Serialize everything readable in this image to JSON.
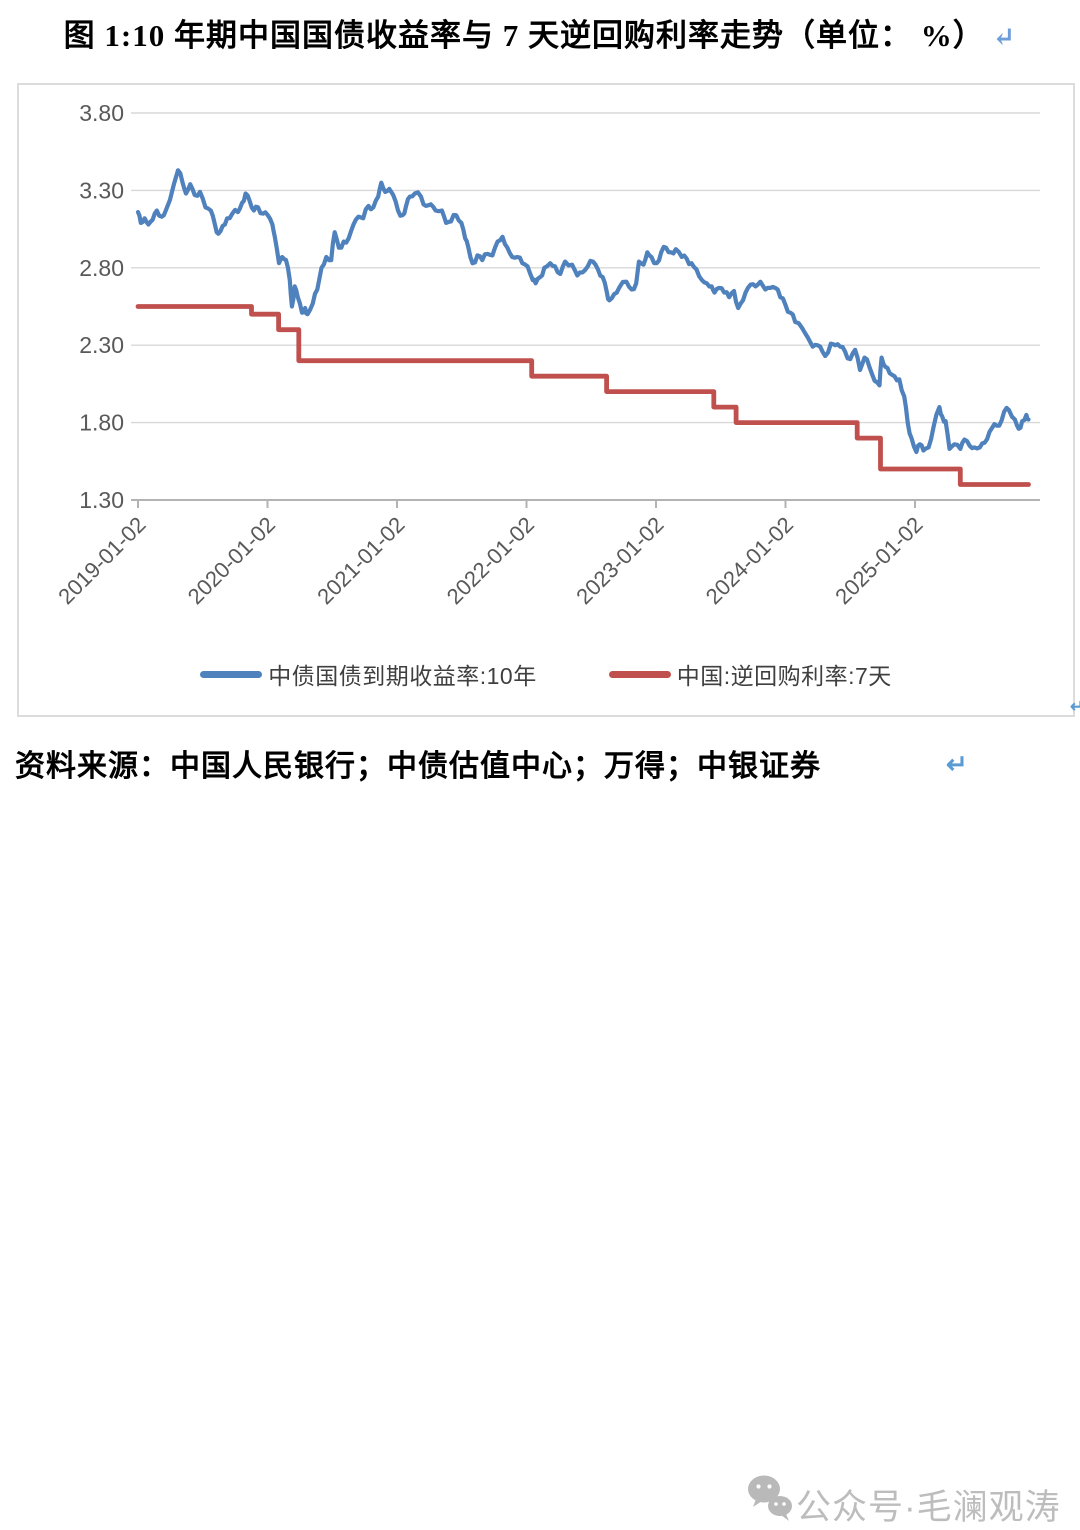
{
  "title": {
    "text": "图 1:10 年期中国国债收益率与 7 天逆回购利率走势（单位： %）",
    "return_mark": "↵"
  },
  "figure": {
    "corner_return_mark": "↵"
  },
  "source": {
    "text": "资料来源：中国人民银行；中债估值中心；万得；中银证券",
    "return_mark": "↵"
  },
  "watermark": {
    "icon": "wechat-icon",
    "text": "公众号·毛澜观涛"
  },
  "colors": {
    "grid": "#d8d8d8",
    "axis": "#b3b3b3",
    "tick_label": "#595959",
    "frame_border": "#dcdcdc",
    "watermark_gray": "#a8a8a8",
    "return_blue": "#5b9bd5"
  },
  "chart_data": {
    "type": "line",
    "unit": "%",
    "ylim": [
      1.3,
      3.8
    ],
    "ytick_labels": [
      "3.80",
      "3.30",
      "2.80",
      "2.30",
      "1.80",
      "1.30"
    ],
    "xtick_labels": [
      "2019-01-02",
      "2020-01-02",
      "2021-01-02",
      "2022-01-02",
      "2023-01-02",
      "2024-01-02",
      "2025-01-02"
    ],
    "x_end": "2025-11-18",
    "grid": true,
    "legend_position": "bottom",
    "series": [
      {
        "name": "中债国债到期收益率:10年",
        "color": "#4f81bd",
        "line_style": "solid",
        "points": [
          [
            "2019-01-02",
            3.16
          ],
          [
            "2019-01-10",
            3.09
          ],
          [
            "2019-01-21",
            3.12
          ],
          [
            "2019-02-01",
            3.08
          ],
          [
            "2019-02-13",
            3.11
          ],
          [
            "2019-02-25",
            3.17
          ],
          [
            "2019-03-08",
            3.13
          ],
          [
            "2019-03-20",
            3.17
          ],
          [
            "2019-04-01",
            3.24
          ],
          [
            "2019-04-12",
            3.34
          ],
          [
            "2019-04-24",
            3.43
          ],
          [
            "2019-05-06",
            3.35
          ],
          [
            "2019-05-16",
            3.28
          ],
          [
            "2019-05-28",
            3.34
          ],
          [
            "2019-06-10",
            3.27
          ],
          [
            "2019-06-25",
            3.29
          ],
          [
            "2019-07-10",
            3.19
          ],
          [
            "2019-07-25",
            3.17
          ],
          [
            "2019-08-06",
            3.08
          ],
          [
            "2019-08-16",
            3.02
          ],
          [
            "2019-08-28",
            3.07
          ],
          [
            "2019-09-10",
            3.12
          ],
          [
            "2019-09-25",
            3.15
          ],
          [
            "2019-10-10",
            3.16
          ],
          [
            "2019-10-22",
            3.22
          ],
          [
            "2019-11-01",
            3.28
          ],
          [
            "2019-11-13",
            3.23
          ],
          [
            "2019-11-25",
            3.17
          ],
          [
            "2019-12-06",
            3.19
          ],
          [
            "2019-12-20",
            3.15
          ],
          [
            "2020-01-03",
            3.14
          ],
          [
            "2020-01-16",
            3.08
          ],
          [
            "2020-01-23",
            3.0
          ],
          [
            "2020-02-04",
            2.83
          ],
          [
            "2020-02-13",
            2.87
          ],
          [
            "2020-02-24",
            2.85
          ],
          [
            "2020-03-04",
            2.72
          ],
          [
            "2020-03-10",
            2.55
          ],
          [
            "2020-03-18",
            2.68
          ],
          [
            "2020-03-27",
            2.61
          ],
          [
            "2020-04-08",
            2.51
          ],
          [
            "2020-04-17",
            2.54
          ],
          [
            "2020-04-24",
            2.5
          ],
          [
            "2020-05-08",
            2.57
          ],
          [
            "2020-05-21",
            2.66
          ],
          [
            "2020-06-02",
            2.8
          ],
          [
            "2020-06-16",
            2.87
          ],
          [
            "2020-06-30",
            2.85
          ],
          [
            "2020-07-09",
            3.03
          ],
          [
            "2020-07-21",
            2.93
          ],
          [
            "2020-08-04",
            2.97
          ],
          [
            "2020-08-18",
            2.99
          ],
          [
            "2020-09-01",
            3.08
          ],
          [
            "2020-09-15",
            3.13
          ],
          [
            "2020-09-29",
            3.12
          ],
          [
            "2020-10-13",
            3.2
          ],
          [
            "2020-10-27",
            3.19
          ],
          [
            "2020-11-10",
            3.26
          ],
          [
            "2020-11-19",
            3.35
          ],
          [
            "2020-11-30",
            3.29
          ],
          [
            "2020-12-11",
            3.31
          ],
          [
            "2020-12-22",
            3.27
          ],
          [
            "2021-01-05",
            3.17
          ],
          [
            "2021-01-18",
            3.14
          ],
          [
            "2021-01-28",
            3.2
          ],
          [
            "2021-02-08",
            3.26
          ],
          [
            "2021-02-22",
            3.28
          ],
          [
            "2021-03-09",
            3.26
          ],
          [
            "2021-03-23",
            3.2
          ],
          [
            "2021-04-06",
            3.21
          ],
          [
            "2021-04-20",
            3.17
          ],
          [
            "2021-05-07",
            3.17
          ],
          [
            "2021-05-19",
            3.09
          ],
          [
            "2021-06-02",
            3.1
          ],
          [
            "2021-06-17",
            3.14
          ],
          [
            "2021-07-01",
            3.09
          ],
          [
            "2021-07-12",
            2.99
          ],
          [
            "2021-07-21",
            2.93
          ],
          [
            "2021-08-02",
            2.83
          ],
          [
            "2021-08-16",
            2.88
          ],
          [
            "2021-08-30",
            2.85
          ],
          [
            "2021-09-14",
            2.89
          ],
          [
            "2021-09-28",
            2.88
          ],
          [
            "2021-10-12",
            2.97
          ],
          [
            "2021-10-26",
            3.0
          ],
          [
            "2021-11-09",
            2.93
          ],
          [
            "2021-11-23",
            2.87
          ],
          [
            "2021-12-07",
            2.87
          ],
          [
            "2021-12-21",
            2.83
          ],
          [
            "2022-01-05",
            2.81
          ],
          [
            "2022-01-20",
            2.72
          ],
          [
            "2022-01-28",
            2.7
          ],
          [
            "2022-02-10",
            2.74
          ],
          [
            "2022-02-22",
            2.8
          ],
          [
            "2022-03-08",
            2.83
          ],
          [
            "2022-03-22",
            2.81
          ],
          [
            "2022-04-06",
            2.76
          ],
          [
            "2022-04-20",
            2.84
          ],
          [
            "2022-05-09",
            2.82
          ],
          [
            "2022-05-24",
            2.75
          ],
          [
            "2022-06-08",
            2.77
          ],
          [
            "2022-06-23",
            2.81
          ],
          [
            "2022-07-07",
            2.84
          ],
          [
            "2022-07-21",
            2.79
          ],
          [
            "2022-08-04",
            2.74
          ],
          [
            "2022-08-16",
            2.64
          ],
          [
            "2022-08-23",
            2.59
          ],
          [
            "2022-09-06",
            2.63
          ],
          [
            "2022-09-20",
            2.67
          ],
          [
            "2022-10-10",
            2.71
          ],
          [
            "2022-10-25",
            2.66
          ],
          [
            "2022-11-07",
            2.7
          ],
          [
            "2022-11-15",
            2.84
          ],
          [
            "2022-11-28",
            2.82
          ],
          [
            "2022-12-08",
            2.9
          ],
          [
            "2022-12-20",
            2.87
          ],
          [
            "2023-01-04",
            2.83
          ],
          [
            "2023-01-17",
            2.9
          ],
          [
            "2023-01-31",
            2.93
          ],
          [
            "2023-02-14",
            2.9
          ],
          [
            "2023-02-28",
            2.92
          ],
          [
            "2023-03-14",
            2.87
          ],
          [
            "2023-03-28",
            2.86
          ],
          [
            "2023-04-11",
            2.83
          ],
          [
            "2023-04-25",
            2.79
          ],
          [
            "2023-05-10",
            2.72
          ],
          [
            "2023-05-24",
            2.7
          ],
          [
            "2023-06-07",
            2.68
          ],
          [
            "2023-06-15",
            2.64
          ],
          [
            "2023-06-28",
            2.67
          ],
          [
            "2023-07-12",
            2.64
          ],
          [
            "2023-07-26",
            2.61
          ],
          [
            "2023-08-09",
            2.65
          ],
          [
            "2023-08-21",
            2.54
          ],
          [
            "2023-09-04",
            2.59
          ],
          [
            "2023-09-18",
            2.67
          ],
          [
            "2023-10-09",
            2.68
          ],
          [
            "2023-10-23",
            2.71
          ],
          [
            "2023-11-06",
            2.66
          ],
          [
            "2023-11-20",
            2.67
          ],
          [
            "2023-12-04",
            2.67
          ],
          [
            "2023-12-18",
            2.61
          ],
          [
            "2024-01-02",
            2.56
          ],
          [
            "2024-01-16",
            2.51
          ],
          [
            "2024-01-30",
            2.45
          ],
          [
            "2024-02-19",
            2.41
          ],
          [
            "2024-03-04",
            2.35
          ],
          [
            "2024-03-18",
            2.29
          ],
          [
            "2024-04-01",
            2.3
          ],
          [
            "2024-04-23",
            2.23
          ],
          [
            "2024-05-08",
            2.31
          ],
          [
            "2024-05-21",
            2.3
          ],
          [
            "2024-06-04",
            2.29
          ],
          [
            "2024-06-18",
            2.26
          ],
          [
            "2024-07-02",
            2.21
          ],
          [
            "2024-07-16",
            2.27
          ],
          [
            "2024-07-30",
            2.14
          ],
          [
            "2024-08-12",
            2.22
          ],
          [
            "2024-08-26",
            2.16
          ],
          [
            "2024-09-10",
            2.07
          ],
          [
            "2024-09-24",
            2.04
          ],
          [
            "2024-09-30",
            2.22
          ],
          [
            "2024-10-10",
            2.16
          ],
          [
            "2024-10-22",
            2.12
          ],
          [
            "2024-11-05",
            2.1
          ],
          [
            "2024-11-19",
            2.08
          ],
          [
            "2024-12-02",
            1.97
          ],
          [
            "2024-12-12",
            1.8
          ],
          [
            "2024-12-23",
            1.7
          ],
          [
            "2025-01-06",
            1.61
          ],
          [
            "2025-01-16",
            1.66
          ],
          [
            "2025-01-26",
            1.62
          ],
          [
            "2025-02-10",
            1.64
          ],
          [
            "2025-02-24",
            1.77
          ],
          [
            "2025-03-10",
            1.9
          ],
          [
            "2025-03-18",
            1.84
          ],
          [
            "2025-03-28",
            1.81
          ],
          [
            "2025-04-08",
            1.63
          ],
          [
            "2025-04-22",
            1.66
          ],
          [
            "2025-05-08",
            1.63
          ],
          [
            "2025-05-20",
            1.69
          ],
          [
            "2025-06-04",
            1.65
          ],
          [
            "2025-06-18",
            1.64
          ],
          [
            "2025-07-02",
            1.64
          ],
          [
            "2025-07-16",
            1.67
          ],
          [
            "2025-07-30",
            1.74
          ],
          [
            "2025-08-13",
            1.79
          ],
          [
            "2025-08-27",
            1.78
          ],
          [
            "2025-09-10",
            1.87
          ],
          [
            "2025-09-24",
            1.88
          ],
          [
            "2025-10-10",
            1.82
          ],
          [
            "2025-10-21",
            1.76
          ],
          [
            "2025-10-31",
            1.81
          ],
          [
            "2025-11-12",
            1.85
          ],
          [
            "2025-11-18",
            1.82
          ]
        ]
      },
      {
        "name": "中国:逆回购利率:7天",
        "color": "#c0504d",
        "line_style": "step",
        "points": [
          [
            "2019-01-02",
            2.55
          ],
          [
            "2019-11-18",
            2.5
          ],
          [
            "2020-02-03",
            2.4
          ],
          [
            "2020-03-30",
            2.2
          ],
          [
            "2022-01-17",
            2.1
          ],
          [
            "2022-08-15",
            2.0
          ],
          [
            "2023-06-13",
            1.9
          ],
          [
            "2023-08-15",
            1.8
          ],
          [
            "2024-07-22",
            1.7
          ],
          [
            "2024-09-27",
            1.5
          ],
          [
            "2025-05-08",
            1.4
          ]
        ]
      }
    ]
  }
}
